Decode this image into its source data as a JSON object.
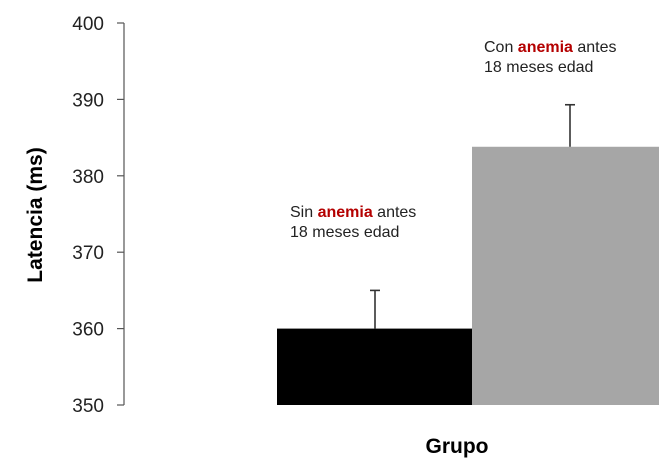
{
  "chart_data": {
    "type": "bar",
    "title": "",
    "xlabel": "Grupo",
    "ylabel": "Latencia (ms)",
    "ylim": [
      350,
      400
    ],
    "yticks": [
      350,
      360,
      370,
      380,
      390,
      400
    ],
    "grid": false,
    "categories": [
      "Sin anemia antes 18 meses edad",
      "Con anemia antes 18 meses edad"
    ],
    "values": [
      360,
      383.8
    ],
    "error_upper": [
      365,
      389.3
    ],
    "colors": [
      "#000000",
      "#a6a6a6"
    ],
    "annotations": [
      {
        "before": "Sin ",
        "highlight": "anemia",
        "after": " antes",
        "line2": "18 meses edad"
      },
      {
        "before": "Con ",
        "highlight": "anemia",
        "after": " antes",
        "line2": "18 meses edad"
      }
    ],
    "highlight_color": "#b40000"
  }
}
